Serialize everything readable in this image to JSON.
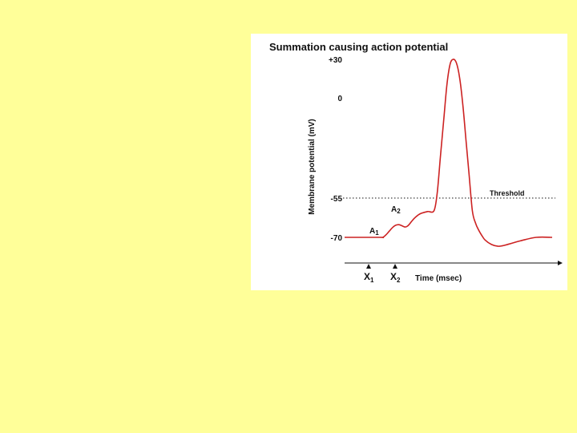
{
  "chart_data": {
    "type": "line",
    "title": "Summation causing action potential",
    "ylabel": "Membrane potential (mV)",
    "xlabel": "Time (msec)",
    "y_ticks": [
      "+30",
      "0",
      "-55",
      "-70"
    ],
    "threshold": {
      "value": -55,
      "label": "Threshold"
    },
    "stimuli": [
      {
        "label": "X",
        "sub": "1"
      },
      {
        "label": "X",
        "sub": "2"
      }
    ],
    "annotations": [
      {
        "label": "A",
        "sub": "1"
      },
      {
        "label": "A",
        "sub": "2"
      }
    ],
    "series": [
      {
        "color": "#cc2222",
        "points": [
          [
            0,
            -70
          ],
          [
            11,
            -70
          ],
          [
            12,
            -70
          ],
          [
            13,
            -68.5
          ],
          [
            14,
            -66.5
          ],
          [
            15,
            -64.5
          ],
          [
            16,
            -63.2
          ],
          [
            17,
            -62.9
          ],
          [
            18,
            -63.5
          ],
          [
            19,
            -64.2
          ],
          [
            20,
            -63.2
          ],
          [
            21,
            -61
          ],
          [
            22,
            -59
          ],
          [
            23,
            -57.5
          ],
          [
            24,
            -56.5
          ],
          [
            26,
            -55.5
          ],
          [
            28,
            -55
          ],
          [
            29,
            -45
          ],
          [
            30,
            -25
          ],
          [
            31,
            -5
          ],
          [
            32,
            15
          ],
          [
            33,
            27
          ],
          [
            34,
            30
          ],
          [
            35,
            28
          ],
          [
            36,
            20
          ],
          [
            37,
            5
          ],
          [
            38,
            -15
          ],
          [
            39,
            -35
          ],
          [
            40,
            -55
          ],
          [
            41,
            -62
          ],
          [
            42,
            -66
          ],
          [
            43,
            -69
          ],
          [
            44,
            -71.5
          ],
          [
            46,
            -74
          ],
          [
            48,
            -75
          ],
          [
            50,
            -74.5
          ],
          [
            55,
            -72
          ],
          [
            60,
            -70
          ],
          [
            65,
            -70
          ]
        ]
      }
    ],
    "xlim": [
      0,
      65
    ],
    "ylim": [
      -80,
      35
    ]
  }
}
